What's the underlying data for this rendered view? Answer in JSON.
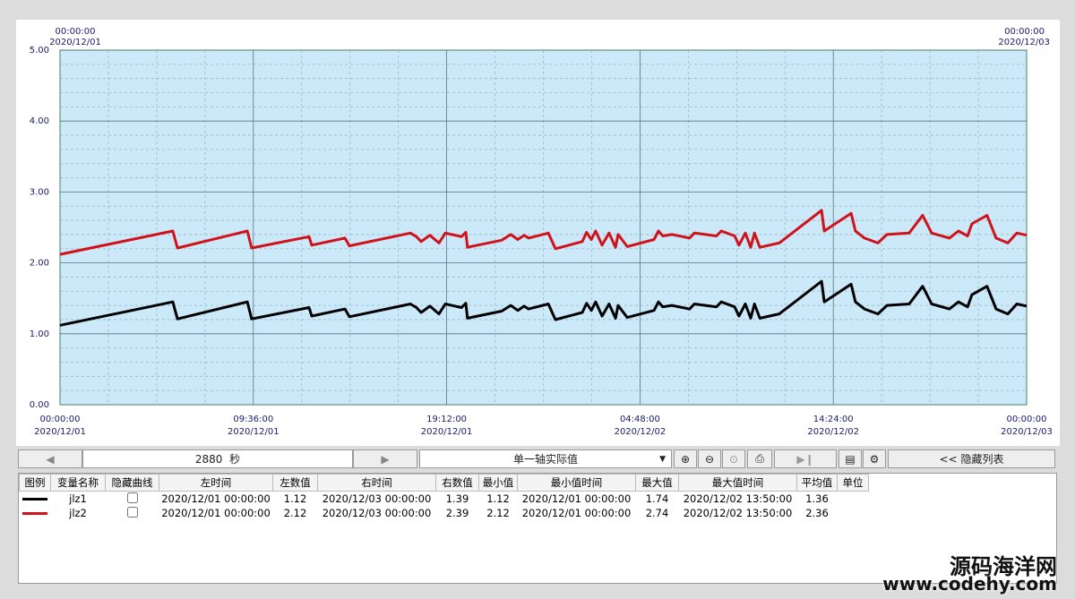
{
  "chart_data": {
    "type": "line",
    "range_labels": {
      "start_time": "00:00:00",
      "start_date": "2020/12/01",
      "end_time": "00:00:00",
      "end_date": "2020/12/03"
    },
    "x": [
      0,
      336,
      350,
      558,
      571,
      742,
      750,
      849,
      862,
      1044,
      1062,
      1076,
      1102,
      1129,
      1148,
      1196,
      1209,
      1214,
      1316,
      1343,
      1364,
      1383,
      1396,
      1455,
      1476,
      1556,
      1569,
      1583,
      1596,
      1615,
      1636,
      1655,
      1663,
      1690,
      1770,
      1783,
      1796,
      1823,
      1876,
      1890,
      1956,
      1970,
      2010,
      2023,
      2042,
      2058,
      2069,
      2085,
      2143,
      2269,
      2277,
      2357,
      2370,
      2397,
      2437,
      2464,
      2530,
      2570,
      2597,
      2650,
      2677,
      2704,
      2717,
      2762,
      2789,
      2824,
      2851,
      2880
    ],
    "xlim": [
      0,
      2880
    ],
    "xticks": [
      {
        "value": 0,
        "label": "00:00:00"
      },
      {
        "value": 576,
        "label": "09:36:00"
      },
      {
        "value": 1152,
        "label": "19:12:00"
      },
      {
        "value": 1728,
        "label": "04:48:00"
      },
      {
        "value": 2304,
        "label": "14:24:00"
      },
      {
        "value": 2880,
        "label": "00:00:00"
      }
    ],
    "xtick_dates": [
      "2020/12/01",
      "2020/12/01",
      "2020/12/01",
      "2020/12/02",
      "2020/12/02",
      "2020/12/03"
    ],
    "ylim": [
      0,
      5
    ],
    "yticks": [
      {
        "value": 0,
        "label": "0.00"
      },
      {
        "value": 1,
        "label": "1.00"
      },
      {
        "value": 2,
        "label": "2.00"
      },
      {
        "value": 3,
        "label": "3.00"
      },
      {
        "value": 4,
        "label": "4.00"
      },
      {
        "value": 5,
        "label": "5.00"
      }
    ],
    "grid": true,
    "x_minor_divisions": 4,
    "y_minor_divisions": 5,
    "series": [
      {
        "name": "jlz1",
        "color": "#000000",
        "hidden": false,
        "values": [
          1.12,
          1.45,
          1.21,
          1.45,
          1.21,
          1.37,
          1.25,
          1.35,
          1.24,
          1.42,
          1.37,
          1.3,
          1.39,
          1.28,
          1.42,
          1.37,
          1.43,
          1.22,
          1.32,
          1.4,
          1.33,
          1.39,
          1.35,
          1.42,
          1.2,
          1.3,
          1.43,
          1.33,
          1.45,
          1.25,
          1.42,
          1.22,
          1.4,
          1.23,
          1.33,
          1.45,
          1.38,
          1.4,
          1.35,
          1.42,
          1.38,
          1.45,
          1.38,
          1.25,
          1.42,
          1.22,
          1.42,
          1.22,
          1.28,
          1.74,
          1.45,
          1.7,
          1.45,
          1.35,
          1.28,
          1.4,
          1.42,
          1.67,
          1.42,
          1.35,
          1.45,
          1.38,
          1.55,
          1.67,
          1.35,
          1.28,
          1.42,
          1.39
        ]
      },
      {
        "name": "jlz2",
        "color": "#d0121b",
        "hidden": false,
        "values": [
          2.12,
          2.45,
          2.21,
          2.45,
          2.21,
          2.37,
          2.25,
          2.35,
          2.24,
          2.42,
          2.37,
          2.3,
          2.39,
          2.28,
          2.42,
          2.37,
          2.43,
          2.22,
          2.32,
          2.4,
          2.33,
          2.39,
          2.35,
          2.42,
          2.2,
          2.3,
          2.43,
          2.33,
          2.45,
          2.25,
          2.42,
          2.22,
          2.4,
          2.23,
          2.33,
          2.45,
          2.38,
          2.4,
          2.35,
          2.42,
          2.38,
          2.45,
          2.38,
          2.25,
          2.42,
          2.22,
          2.42,
          2.22,
          2.28,
          2.74,
          2.45,
          2.7,
          2.45,
          2.35,
          2.28,
          2.4,
          2.42,
          2.67,
          2.42,
          2.35,
          2.45,
          2.38,
          2.55,
          2.67,
          2.35,
          2.28,
          2.42,
          2.39
        ]
      }
    ]
  },
  "toolbar": {
    "span": "2880",
    "span_unit": "秒",
    "mode": "单一轴实际值",
    "hide_list": "<< 隐藏列表"
  },
  "table": {
    "headers": [
      "图例",
      "变量名称",
      "隐藏曲线",
      "左时间",
      "左数值",
      "右时间",
      "右数值",
      "最小值",
      "最小值时间",
      "最大值",
      "最大值时间",
      "平均值",
      "单位"
    ],
    "rows": [
      [
        "2020/12/01 00:00:00",
        "1.12",
        "2020/12/03 00:00:00",
        "1.39",
        "1.12",
        "2020/12/01 00:00:00",
        "1.74",
        "2020/12/02 13:50:00",
        "1.36"
      ],
      [
        "2020/12/01 00:00:00",
        "2.12",
        "2020/12/03 00:00:00",
        "2.39",
        "2.12",
        "2020/12/01 00:00:00",
        "2.74",
        "2020/12/02 13:50:00",
        "2.36"
      ]
    ]
  },
  "watermark": {
    "line1": "源码海洋网",
    "line2": "www.codehy.com"
  }
}
